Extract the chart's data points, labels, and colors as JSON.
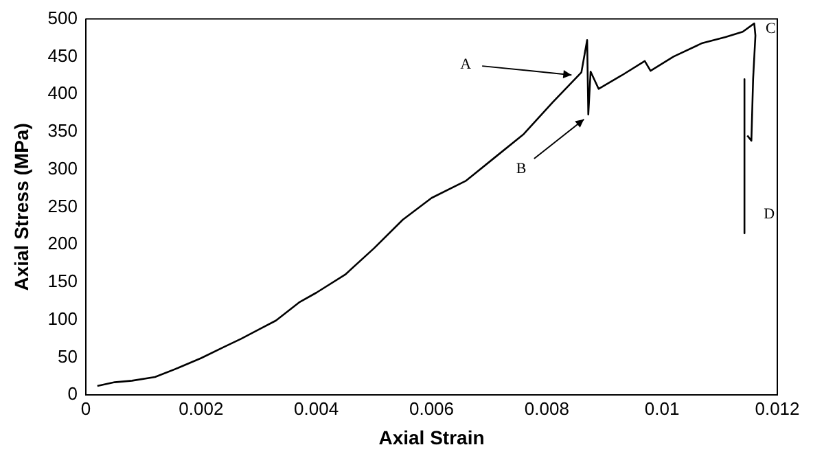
{
  "chart_data": {
    "type": "line",
    "xlabel": "Axial Strain",
    "ylabel": "Axial Stress (MPa)",
    "xlim": [
      0,
      0.012
    ],
    "xticks": [
      0,
      0.002,
      0.004,
      0.006,
      0.008,
      0.01,
      0.012
    ],
    "ylim": [
      0,
      500
    ],
    "yticks": [
      0,
      50,
      100,
      150,
      200,
      250,
      300,
      350,
      400,
      450,
      500
    ],
    "grid": false,
    "legend": false,
    "marker": "none",
    "line_style": "solid",
    "series": [
      {
        "color": "#000000",
        "x": [
          0.0002,
          0.0005,
          0.0008,
          0.0012,
          0.0016,
          0.002,
          0.0024,
          0.0027,
          0.003,
          0.0033,
          0.0037,
          0.004,
          0.0045,
          0.005,
          0.0055,
          0.006,
          0.0066,
          0.0071,
          0.0076,
          0.0081,
          0.0086,
          0.0087,
          0.00872,
          0.00876,
          0.0089,
          0.0093,
          0.0097,
          0.0098,
          0.0102,
          0.0107,
          0.0111,
          0.0114,
          0.0116,
          0.01162,
          0.01158,
          0.01155,
          0.01148
        ],
        "values": [
          12,
          17,
          19,
          24,
          36,
          49,
          64,
          75,
          87,
          99,
          123,
          136,
          160,
          195,
          233,
          262,
          285,
          316,
          347,
          389,
          429,
          472,
          373,
          430,
          407,
          425,
          444,
          431,
          450,
          468,
          476,
          483,
          494,
          478,
          420,
          338,
          345
        ]
      },
      {
        "color": "#000000",
        "x": [
          0.01143,
          0.01143
        ],
        "values": [
          420,
          215
        ]
      }
    ],
    "annotations": [
      {
        "text": "A",
        "x": 0.0085,
        "y": 425
      },
      {
        "text": "B",
        "x": 0.0087,
        "y": 370
      },
      {
        "text": "C",
        "x": 0.0116,
        "y": 494
      },
      {
        "text": "D",
        "x": 0.01143,
        "y": 240
      }
    ]
  }
}
